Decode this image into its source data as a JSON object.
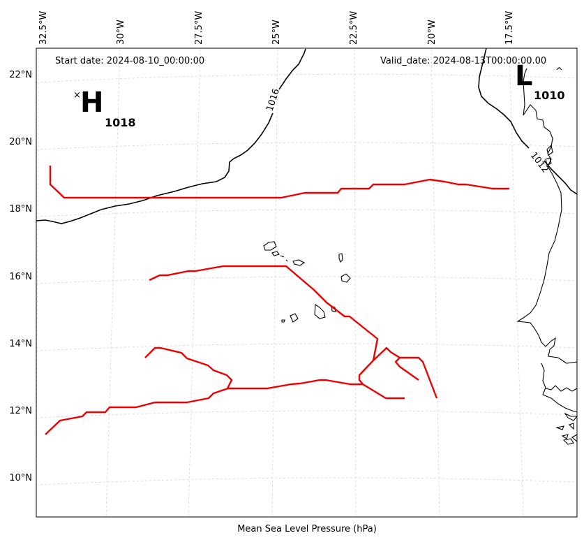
{
  "map": {
    "start_date": "Start date: 2024-08-10_00:00:00",
    "valid_date": "Valid_date: 2024-08-13T00:00:00.00",
    "caption": "Mean Sea Level Pressure (hPa)",
    "lon_ticks": [
      "32.5°W",
      "30°W",
      "27.5°W",
      "25°W",
      "22.5°W",
      "20°W",
      "17.5°W"
    ],
    "lat_ticks": [
      "22°N",
      "20°N",
      "18°N",
      "16°N",
      "14°N",
      "12°N",
      "10°N"
    ],
    "high": {
      "letter": "H",
      "value": "1018",
      "marker": "×"
    },
    "low": {
      "letter": "L",
      "value": "1010",
      "marker": "^"
    },
    "isobars": [
      {
        "label": "1016"
      },
      {
        "label": "1012"
      }
    ],
    "colors": {
      "track": "#ee0000",
      "isobar": "#000000",
      "grid": "#cfcfcf",
      "coast": "#000000"
    }
  }
}
